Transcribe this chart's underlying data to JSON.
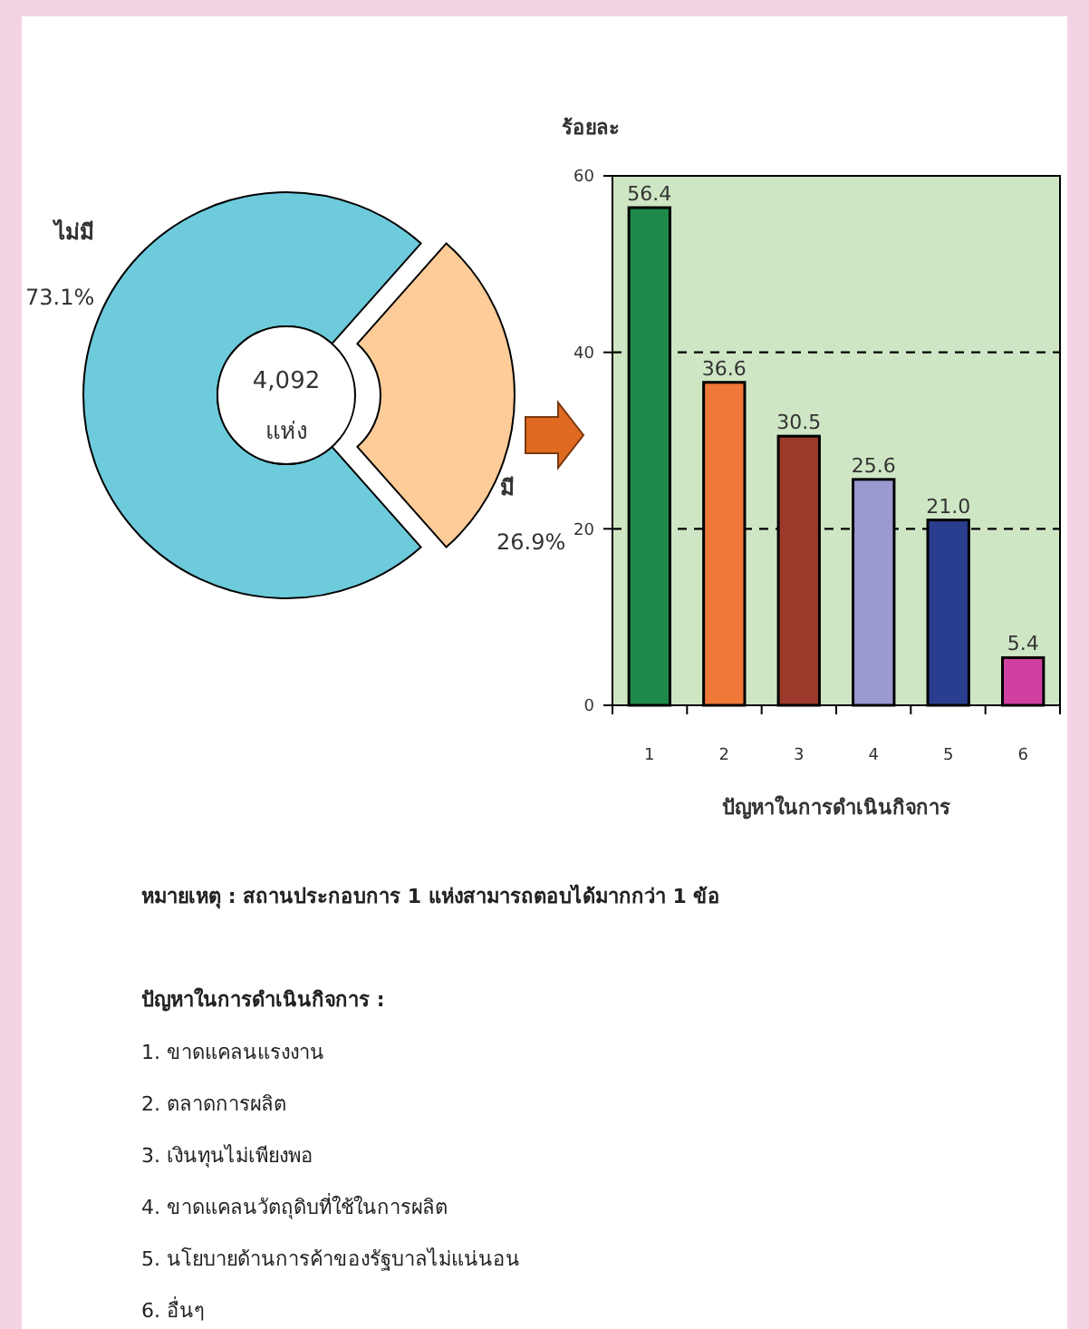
{
  "chart_data": [
    {
      "type": "donut",
      "categories": [
        "ไม่มี",
        "มี"
      ],
      "values": [
        73.1,
        26.9
      ],
      "value_labels": [
        "73.1%",
        "26.9%"
      ],
      "colors": [
        "#6dcbdc",
        "#fdcc98"
      ],
      "annotations": [
        "4,092",
        "แห่ง"
      ]
    },
    {
      "type": "bar",
      "ylabel": "ร้อยละ",
      "xlabel": "ปัญหาในการดำเนินกิจการ",
      "categories": [
        "1",
        "2",
        "3",
        "4",
        "5",
        "6"
      ],
      "colors": [
        "#1e8a4a",
        "#f07838",
        "#9b3a2a",
        "#9a9ad0",
        "#2a3e8f",
        "#d040a0"
      ],
      "values": [
        56.4,
        36.6,
        30.5,
        25.6,
        21.0,
        5.4
      ],
      "value_labels": [
        "56.4",
        "36.6",
        "30.5",
        "25.6",
        "21.0",
        "5.4"
      ],
      "ylim": [
        0,
        60
      ],
      "yticks": [
        0,
        20,
        40,
        60
      ],
      "grid": "y",
      "annotations": [
        "หมายเหตุ : สถานประกอบการ 1 แห่งสามารถตอบได้มากกว่า 1 ข้อ",
        "ปัญหาในการดำเนินกิจการ :",
        "1. ขาดแคลนแรงงาน",
        "2. ตลาดการผลิต",
        "3. เงินทุนไม่เพียงพอ",
        "4. ขาดแคลนวัตถุดิบที่ใช้ในการผลิต",
        "5. นโยบายด้านการค้าของรัฐบาลไม่แน่นอน",
        "6. อื่นๆ"
      ]
    }
  ]
}
